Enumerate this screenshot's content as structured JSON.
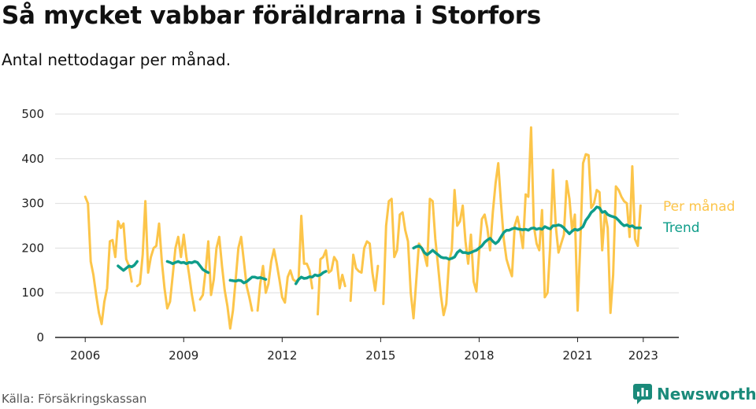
{
  "title": "Så mycket vabbar föräldrarna i Storfors",
  "subtitle": "Antal nettodagar per månad.",
  "source": "Källa: Försäkringskassan",
  "brand": "Newsworthy",
  "colors": {
    "monthly": "#fcc54a",
    "trend": "#0f9d8a",
    "brand": "#1a8a7a",
    "axis": "#222222",
    "grid": "#dddddd"
  },
  "chart_data": {
    "type": "line",
    "title": "Så mycket vabbar föräldrarna i Storfors",
    "subtitle": "Antal nettodagar per månad.",
    "xlabel": "",
    "ylabel": "",
    "ylim": [
      0,
      500
    ],
    "xlim": [
      "2005-02",
      "2024-02"
    ],
    "yticks": [
      0,
      100,
      200,
      300,
      400,
      500
    ],
    "xticks": [
      {
        "value": "2006-01",
        "label": "2006"
      },
      {
        "value": "2009-01",
        "label": "2009"
      },
      {
        "value": "2012-01",
        "label": "2012"
      },
      {
        "value": "2015-01",
        "label": "2015"
      },
      {
        "value": "2018-01",
        "label": "2018"
      },
      {
        "value": "2021-01",
        "label": "2021"
      },
      {
        "value": "2023-01",
        "label": "2023"
      }
    ],
    "grid": "horizontal",
    "legend": "inline-right",
    "series": [
      {
        "name": "Per månad",
        "color": "#fcc54a",
        "start": "2006-01",
        "values": [
          315,
          300,
          170,
          140,
          95,
          55,
          30,
          80,
          110,
          215,
          218,
          180,
          260,
          245,
          255,
          175,
          160,
          125,
          null,
          115,
          120,
          185,
          305,
          145,
          180,
          200,
          205,
          255,
          170,
          110,
          65,
          80,
          140,
          200,
          225,
          180,
          230,
          180,
          140,
          95,
          60,
          null,
          85,
          95,
          150,
          215,
          95,
          130,
          200,
          225,
          160,
          105,
          70,
          20,
          60,
          130,
          200,
          225,
          170,
          115,
          90,
          60,
          null,
          60,
          120,
          160,
          100,
          120,
          170,
          197,
          165,
          130,
          90,
          78,
          135,
          150,
          130,
          125,
          130,
          272,
          165,
          165,
          150,
          110,
          null,
          52,
          175,
          180,
          195,
          145,
          150,
          180,
          170,
          110,
          140,
          115,
          null,
          82,
          185,
          155,
          148,
          145,
          200,
          215,
          210,
          145,
          105,
          160,
          null,
          75,
          250,
          305,
          310,
          180,
          195,
          275,
          280,
          240,
          215,
          100,
          43,
          125,
          210,
          200,
          185,
          160,
          310,
          305,
          220,
          160,
          95,
          50,
          75,
          170,
          195,
          330,
          250,
          260,
          295,
          215,
          165,
          230,
          125,
          103,
          190,
          265,
          275,
          245,
          195,
          280,
          345,
          390,
          300,
          220,
          175,
          155,
          137,
          250,
          270,
          240,
          200,
          320,
          315,
          470,
          250,
          210,
          195,
          285,
          90,
          100,
          205,
          375,
          250,
          190,
          210,
          230,
          350,
          310,
          240,
          275,
          60,
          210,
          390,
          410,
          408,
          290,
          300,
          330,
          325,
          195,
          280,
          245,
          55,
          140,
          338,
          330,
          315,
          305,
          300,
          225,
          383,
          220,
          205,
          295
        ]
      },
      {
        "name": "Trend",
        "color": "#0f9d8a",
        "start": "2006-01",
        "values": [
          null,
          null,
          null,
          null,
          null,
          null,
          null,
          null,
          null,
          null,
          null,
          null,
          160,
          155,
          150,
          155,
          160,
          158,
          162,
          170,
          null,
          null,
          null,
          null,
          null,
          null,
          null,
          null,
          null,
          null,
          170,
          168,
          165,
          168,
          170,
          167,
          168,
          165,
          168,
          167,
          170,
          168,
          160,
          152,
          148,
          145,
          null,
          null,
          null,
          null,
          null,
          null,
          null,
          128,
          127,
          126,
          128,
          127,
          122,
          125,
          130,
          135,
          135,
          133,
          134,
          132,
          130,
          null,
          null,
          null,
          null,
          null,
          null,
          null,
          null,
          null,
          null,
          120,
          130,
          135,
          132,
          133,
          136,
          135,
          140,
          138,
          140,
          145,
          148,
          null,
          null,
          null,
          null,
          null,
          null,
          null,
          null,
          null,
          null,
          null,
          null,
          null,
          null,
          null,
          null,
          null,
          null,
          null,
          null,
          null,
          null,
          null,
          null,
          null,
          null,
          null,
          null,
          null,
          null,
          null,
          200,
          203,
          205,
          200,
          190,
          185,
          190,
          195,
          190,
          185,
          180,
          178,
          178,
          175,
          177,
          180,
          190,
          195,
          190,
          190,
          188,
          190,
          193,
          195,
          200,
          205,
          213,
          218,
          222,
          215,
          210,
          215,
          225,
          235,
          240,
          240,
          243,
          245,
          243,
          242,
          241,
          242,
          240,
          244,
          245,
          242,
          244,
          242,
          248,
          245,
          243,
          250,
          250,
          252,
          250,
          245,
          238,
          232,
          238,
          242,
          240,
          243,
          248,
          262,
          270,
          280,
          285,
          292,
          290,
          280,
          282,
          275,
          272,
          270,
          268,
          262,
          255,
          250,
          252,
          248,
          250,
          245,
          245,
          245
        ]
      }
    ]
  }
}
